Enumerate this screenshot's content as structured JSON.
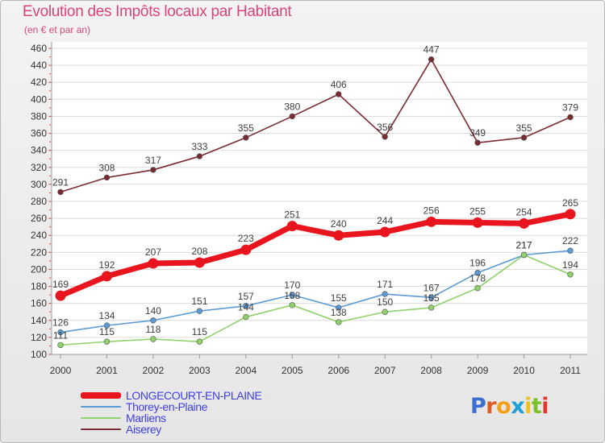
{
  "title": "Evolution des Impôts locaux par Habitant",
  "subtitle": "(en € et par an)",
  "logo": {
    "letters": [
      "P",
      "r",
      "o",
      "x",
      "i",
      "t",
      "i"
    ],
    "colors": [
      "#3a6fd1",
      "#e05a23",
      "#f2a019",
      "#1f9fd8",
      "#f2c018",
      "#7bbf2a",
      "#e0342c"
    ]
  },
  "chart_data": {
    "type": "line",
    "title": "Evolution des Impôts locaux par Habitant",
    "subtitle": "(en € et par an)",
    "x": [
      "2000",
      "2001",
      "2002",
      "2003",
      "2004",
      "2005",
      "2006",
      "2007",
      "2008",
      "2009",
      "2010",
      "2011"
    ],
    "ylim": [
      100,
      460
    ],
    "yticks": [
      "100",
      "120",
      "140",
      "160",
      "180",
      "200",
      "220",
      "240",
      "260",
      "280",
      "300",
      "320",
      "340",
      "360",
      "380",
      "400",
      "420",
      "440",
      "460"
    ],
    "grid": true,
    "legend_position": "bottom-left",
    "series": [
      {
        "name": "LONGECOURT-EN-PLAINE",
        "color": "#e8141e",
        "label_color": "#404040",
        "values": [
          169,
          192,
          207,
          208,
          223,
          251,
          240,
          244,
          256,
          255,
          254,
          265
        ],
        "labels": [
          "169",
          "192",
          "207",
          "208",
          "223",
          "251",
          "240",
          "244",
          "256",
          "255",
          "254",
          "265"
        ],
        "highlight": true
      },
      {
        "name": "Thorey-en-Plaine",
        "color": "#5b9bd5",
        "label_color": "#404040",
        "values": [
          126,
          134,
          140,
          151,
          157,
          170,
          155,
          171,
          167,
          196,
          217,
          222
        ],
        "labels": [
          "126",
          "134",
          "140",
          "151",
          "157",
          "170",
          "155",
          "171",
          "167",
          "196",
          "217",
          "222"
        ],
        "highlight": false
      },
      {
        "name": "Marliens",
        "color": "#8fd16a",
        "label_color": "#404040",
        "values": [
          111,
          115,
          118,
          115,
          144,
          158,
          138,
          150,
          155,
          178,
          217,
          194
        ],
        "labels": [
          "111",
          "115",
          "118",
          "115",
          "144",
          "158",
          "138",
          "150",
          "155",
          "178",
          "217",
          "194"
        ],
        "highlight": false
      },
      {
        "name": "Aiserey",
        "color": "#7a2b32",
        "label_color": "#404040",
        "values": [
          291,
          308,
          317,
          333,
          355,
          380,
          406,
          356,
          447,
          349,
          355,
          379
        ],
        "labels": [
          "291",
          "308",
          "317",
          "333",
          "355",
          "380",
          "406",
          "356",
          "447",
          "349",
          "355",
          "379"
        ],
        "highlight": false
      }
    ]
  },
  "legend": {
    "items": [
      {
        "label": "LONGECOURT-EN-PLAINE",
        "color": "#e8141e",
        "text_color": "#4040e0"
      },
      {
        "label": "Thorey-en-Plaine",
        "color": "#5b9bd5",
        "text_color": "#4040e0"
      },
      {
        "label": "Marliens",
        "color": "#8fd16a",
        "text_color": "#4040e0"
      },
      {
        "label": "Aiserey",
        "color": "#7a2b32",
        "text_color": "#4040e0"
      }
    ]
  }
}
